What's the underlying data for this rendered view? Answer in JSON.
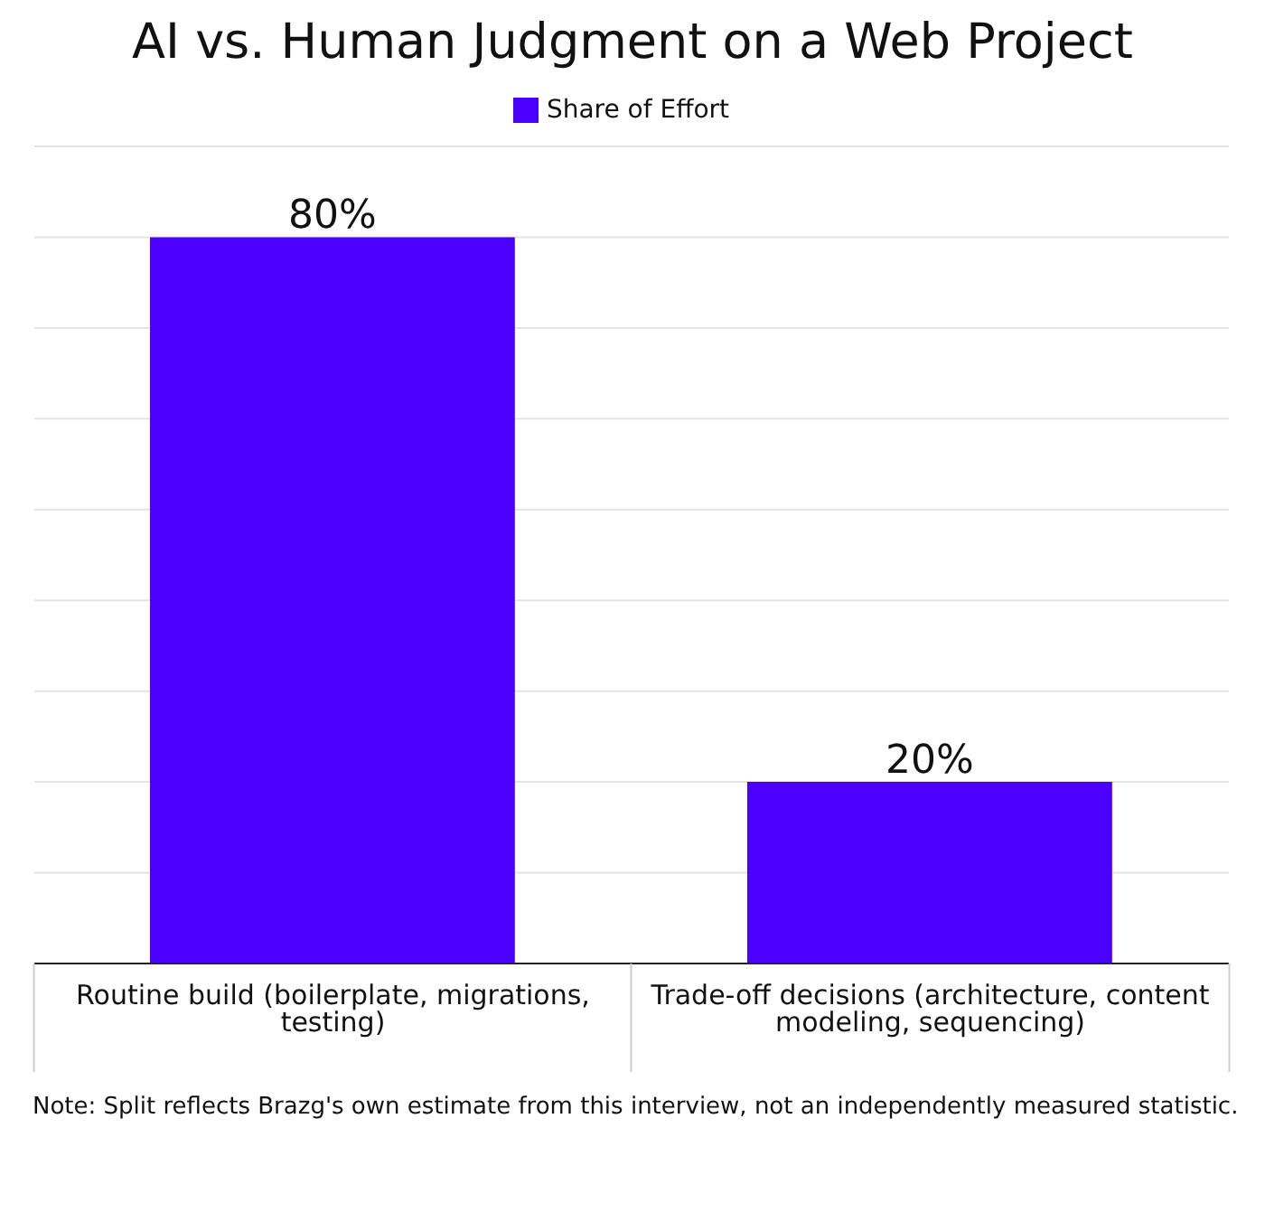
{
  "chart_data": {
    "type": "bar",
    "title": "AI vs. Human Judgment on a Web Project",
    "categories": [
      "Routine build (boilerplate, migrations, testing)",
      "Trade-off decisions (architecture, content modeling, sequencing)"
    ],
    "series": [
      {
        "name": "Share of Effort",
        "color": "#4b00ff",
        "values": [
          80,
          20
        ],
        "value_labels": [
          "80%",
          "20%"
        ]
      }
    ],
    "ylim": [
      0,
      90
    ],
    "yticks": [
      {
        "value": 0,
        "label": null
      },
      {
        "value": 10,
        "label": null
      },
      {
        "value": 20,
        "label": null
      },
      {
        "value": 30,
        "label": null
      },
      {
        "value": 40,
        "label": null
      },
      {
        "value": 50,
        "label": null
      },
      {
        "value": 60,
        "label": null
      },
      {
        "value": 70,
        "label": null
      },
      {
        "value": 80,
        "label": null
      },
      {
        "value": 90,
        "label": null
      }
    ],
    "tick_labels": "x",
    "grid": "y",
    "legend": "top",
    "annotations": [
      "Note: Split reflects Brazg's own estimate from this interview, not an independently measured statistic."
    ]
  }
}
